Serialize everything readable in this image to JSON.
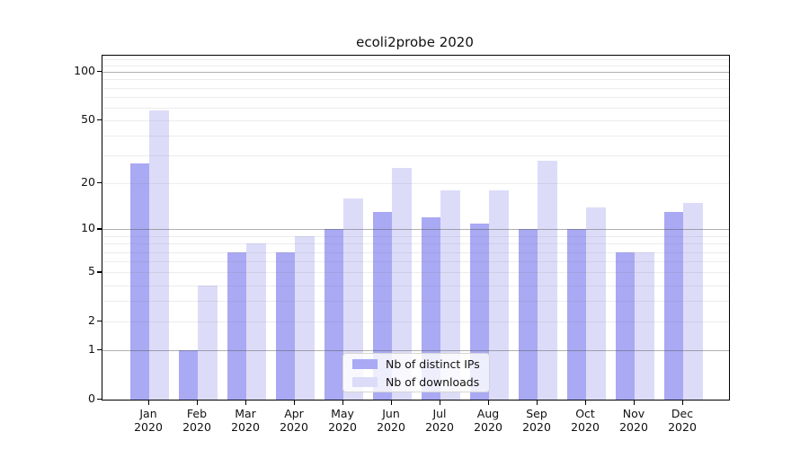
{
  "title": "ecoli2probe 2020",
  "colors": {
    "ips": "#a9a9f4",
    "downloads": "#dcdcf9",
    "grid_major": "rgba(80,80,80,0.45)",
    "grid_minor": "rgba(120,120,120,0.14)",
    "spine": "#000000",
    "text": "#111111"
  },
  "legend": {
    "items": [
      {
        "key": "ips",
        "label": "Nb of distinct IPs"
      },
      {
        "key": "downloads",
        "label": "Nb of downloads"
      }
    ]
  },
  "chart_data": {
    "type": "bar",
    "title": "ecoli2probe 2020",
    "categories": [
      "Jan 2020",
      "Feb 2020",
      "Mar 2020",
      "Apr 2020",
      "May 2020",
      "Jun 2020",
      "Jul 2020",
      "Aug 2020",
      "Sep 2020",
      "Oct 2020",
      "Nov 2020",
      "Dec 2020"
    ],
    "series": [
      {
        "name": "Nb of distinct IPs",
        "key": "ips",
        "values": [
          27,
          1,
          7,
          7,
          10,
          13,
          12,
          11,
          10,
          10,
          7,
          13
        ]
      },
      {
        "name": "Nb of downloads",
        "key": "downloads",
        "values": [
          58,
          4,
          8,
          9,
          16,
          25,
          18,
          18,
          28,
          14,
          7,
          15
        ]
      }
    ],
    "xlabel": "",
    "ylabel": "",
    "yscale": "log1p",
    "ylim": [
      0,
      126
    ],
    "y_ticks": [
      0,
      1,
      2,
      5,
      10,
      20,
      50,
      100
    ],
    "y_major_gridlines": [
      1,
      10,
      100
    ],
    "y_minor_gridlines": [
      2,
      3,
      4,
      5,
      6,
      7,
      8,
      9,
      20,
      30,
      40,
      50,
      60,
      70,
      80,
      90,
      110,
      120
    ],
    "grid": true,
    "legend_position": "lower center"
  }
}
